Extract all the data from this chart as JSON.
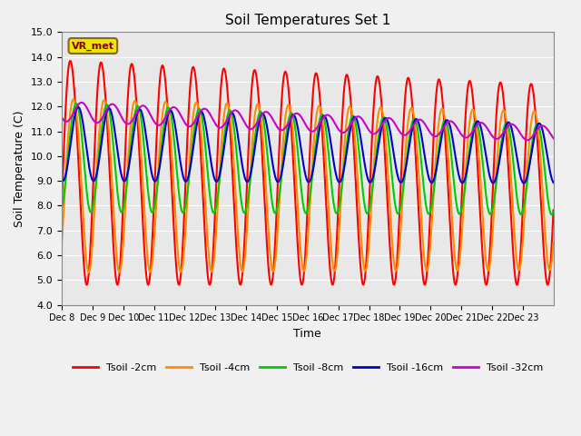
{
  "title": "Soil Temperatures Set 1",
  "xlabel": "Time",
  "ylabel": "Soil Temperature (C)",
  "ylim": [
    4.0,
    15.0
  ],
  "yticks": [
    4.0,
    5.0,
    6.0,
    7.0,
    8.0,
    9.0,
    10.0,
    11.0,
    12.0,
    13.0,
    14.0,
    15.0
  ],
  "xtick_labels": [
    "Dec 8",
    "Dec 9",
    "Dec 10",
    "Dec 11",
    "Dec 12",
    "Dec 13",
    "Dec 14",
    "Dec 15",
    "Dec 16",
    "Dec 17",
    "Dec 18",
    "Dec 19",
    "Dec 20",
    "Dec 21",
    "Dec 22",
    "Dec 23"
  ],
  "num_days": 16,
  "points_per_day": 48,
  "colors": {
    "Tsoil -2cm": "#ff0000",
    "Tsoil -4cm": "#ff8c00",
    "Tsoil -8cm": "#00cc00",
    "Tsoil -16cm": "#0000cc",
    "Tsoil -32cm": "#cc00cc"
  },
  "bg_color": "#e8e8e8",
  "vr_met_label": "VR_met",
  "legend_entries": [
    "Tsoil -2cm",
    "Tsoil -4cm",
    "Tsoil -8cm",
    "Tsoil -16cm",
    "Tsoil -32cm"
  ]
}
